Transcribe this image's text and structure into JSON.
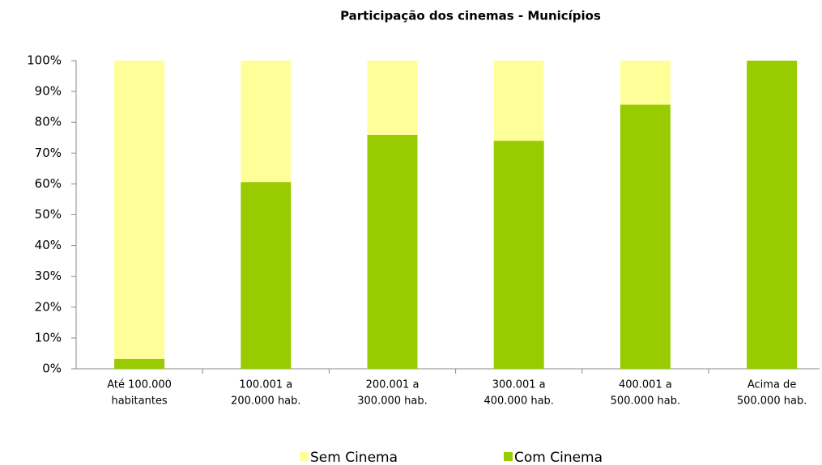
{
  "chart_data": {
    "type": "stacked_bar",
    "title": "Participação dos cinemas - Municípios",
    "categories": [
      [
        "Até 100.000",
        "habitantes"
      ],
      [
        "100.001 a",
        "200.000 hab."
      ],
      [
        "200.001 a",
        "300.000 hab."
      ],
      [
        "300.001 a",
        "400.000 hab."
      ],
      [
        "400.001 a",
        "500.000 hab."
      ],
      [
        "Acima de",
        "500.000 hab."
      ]
    ],
    "series": [
      {
        "name": "Sem Cinema",
        "color": "#ffff99",
        "values": [
          96.8,
          39.4,
          24.1,
          26,
          14.3,
          0
        ]
      },
      {
        "name": "Com Cinema",
        "color": "#99cc00",
        "values": [
          3.2,
          60.6,
          75.9,
          74,
          85.7,
          100
        ]
      }
    ],
    "ylim": [
      0,
      100
    ],
    "yticks": [
      {
        "value": 0,
        "label": "0%"
      },
      {
        "value": 10,
        "label": "10%"
      },
      {
        "value": 20,
        "label": "20%"
      },
      {
        "value": 30,
        "label": "30%"
      },
      {
        "value": 40,
        "label": "40%"
      },
      {
        "value": 50,
        "label": "50%"
      },
      {
        "value": 60,
        "label": "60%"
      },
      {
        "value": 70,
        "label": "70%"
      },
      {
        "value": 80,
        "label": "80%"
      },
      {
        "value": 90,
        "label": "90%"
      },
      {
        "value": 100,
        "label": "100%"
      }
    ],
    "grid": false,
    "legend": "bottom"
  }
}
